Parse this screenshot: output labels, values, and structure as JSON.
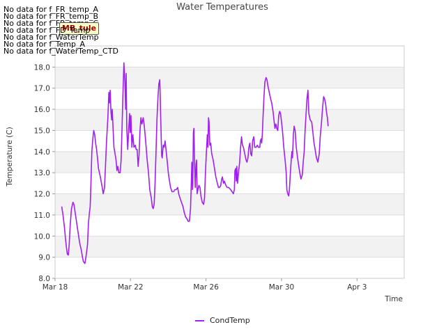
{
  "no_data_messages": [
    "No data for f_FR_temp_A",
    "No data for f_FR_temp_B",
    "No data for f_FR_temp_C",
    "No data for f_FD_Temp",
    "No data for f_WaterTemp",
    "No data for f_Temp_A",
    "No data for f_WaterTemp_CTD"
  ],
  "badge_label": "MB_tule",
  "colors": {
    "series": "#a020f0",
    "band": "#f2f2f2",
    "grid": "#dddddd"
  },
  "chart_data": {
    "type": "line",
    "title": "Water Temperatures",
    "xlabel": "Time",
    "ylabel": "Temperature (C)",
    "xlim": [
      0,
      18.5
    ],
    "ylim": [
      8.0,
      19.0
    ],
    "x_ticks": [
      {
        "day": 0,
        "label": "Mar 18"
      },
      {
        "day": 4,
        "label": "Mar 22"
      },
      {
        "day": 8,
        "label": "Mar 26"
      },
      {
        "day": 12,
        "label": "Mar 30"
      },
      {
        "day": 16,
        "label": "Apr 3"
      }
    ],
    "y_ticks": [
      8.0,
      9.0,
      10.0,
      11.0,
      12.0,
      13.0,
      14.0,
      15.0,
      16.0,
      17.0,
      18.0
    ],
    "legend": "bottom-center",
    "series": [
      {
        "name": "CondTemp",
        "x_unit": "days since Mar 18",
        "points": [
          [
            0.35,
            11.4
          ],
          [
            0.42,
            11.0
          ],
          [
            0.5,
            10.4
          ],
          [
            0.55,
            9.9
          ],
          [
            0.6,
            9.5
          ],
          [
            0.65,
            9.15
          ],
          [
            0.7,
            9.1
          ],
          [
            0.75,
            9.6
          ],
          [
            0.8,
            10.5
          ],
          [
            0.87,
            11.3
          ],
          [
            0.95,
            11.6
          ],
          [
            1.0,
            11.5
          ],
          [
            1.1,
            10.9
          ],
          [
            1.2,
            10.3
          ],
          [
            1.3,
            9.7
          ],
          [
            1.4,
            9.3
          ],
          [
            1.45,
            9.0
          ],
          [
            1.5,
            8.8
          ],
          [
            1.58,
            8.7
          ],
          [
            1.65,
            9.1
          ],
          [
            1.72,
            9.6
          ],
          [
            1.77,
            10.6
          ],
          [
            1.82,
            11.1
          ],
          [
            1.86,
            11.4
          ],
          [
            1.9,
            12.5
          ],
          [
            1.95,
            14.0
          ],
          [
            2.0,
            14.6
          ],
          [
            2.05,
            15.0
          ],
          [
            2.1,
            14.8
          ],
          [
            2.15,
            14.4
          ],
          [
            2.2,
            14.1
          ],
          [
            2.25,
            13.7
          ],
          [
            2.3,
            13.2
          ],
          [
            2.4,
            12.8
          ],
          [
            2.5,
            12.3
          ],
          [
            2.55,
            12.0
          ],
          [
            2.62,
            12.3
          ],
          [
            2.68,
            13.5
          ],
          [
            2.73,
            14.5
          ],
          [
            2.8,
            15.6
          ],
          [
            2.85,
            16.8
          ],
          [
            2.88,
            16.3
          ],
          [
            2.92,
            16.9
          ],
          [
            2.96,
            15.9
          ],
          [
            3.0,
            15.5
          ],
          [
            3.03,
            16.0
          ],
          [
            3.07,
            15.2
          ],
          [
            3.12,
            14.2
          ],
          [
            3.18,
            13.9
          ],
          [
            3.23,
            13.6
          ],
          [
            3.28,
            13.1
          ],
          [
            3.33,
            13.3
          ],
          [
            3.38,
            13.0
          ],
          [
            3.45,
            13.0
          ],
          [
            3.5,
            13.6
          ],
          [
            3.55,
            15.1
          ],
          [
            3.6,
            16.8
          ],
          [
            3.65,
            18.2
          ],
          [
            3.7,
            17.3
          ],
          [
            3.74,
            16.0
          ],
          [
            3.77,
            17.7
          ],
          [
            3.8,
            15.1
          ],
          [
            3.85,
            14.1
          ],
          [
            3.9,
            15.0
          ],
          [
            3.95,
            15.8
          ],
          [
            3.98,
            14.9
          ],
          [
            4.02,
            15.7
          ],
          [
            4.07,
            14.2
          ],
          [
            4.12,
            14.8
          ],
          [
            4.18,
            14.2
          ],
          [
            4.25,
            14.3
          ],
          [
            4.3,
            14.1
          ],
          [
            4.35,
            14.1
          ],
          [
            4.4,
            13.3
          ],
          [
            4.45,
            13.8
          ],
          [
            4.5,
            15.0
          ],
          [
            4.55,
            15.6
          ],
          [
            4.6,
            15.3
          ],
          [
            4.67,
            15.6
          ],
          [
            4.73,
            15.2
          ],
          [
            4.8,
            14.5
          ],
          [
            4.88,
            13.6
          ],
          [
            4.95,
            13.0
          ],
          [
            5.02,
            12.2
          ],
          [
            5.1,
            11.8
          ],
          [
            5.15,
            11.4
          ],
          [
            5.2,
            11.3
          ],
          [
            5.25,
            11.5
          ],
          [
            5.3,
            12.5
          ],
          [
            5.35,
            14.0
          ],
          [
            5.4,
            15.5
          ],
          [
            5.45,
            16.5
          ],
          [
            5.5,
            17.2
          ],
          [
            5.55,
            17.4
          ],
          [
            5.6,
            15.5
          ],
          [
            5.65,
            13.8
          ],
          [
            5.68,
            13.7
          ],
          [
            5.73,
            14.3
          ],
          [
            5.78,
            14.2
          ],
          [
            5.83,
            14.5
          ],
          [
            5.88,
            14.1
          ],
          [
            5.95,
            13.5
          ],
          [
            6.0,
            13.0
          ],
          [
            6.05,
            12.7
          ],
          [
            6.12,
            12.3
          ],
          [
            6.2,
            12.1
          ],
          [
            6.28,
            12.1
          ],
          [
            6.35,
            12.2
          ],
          [
            6.42,
            12.2
          ],
          [
            6.5,
            12.3
          ],
          [
            6.55,
            12.0
          ],
          [
            6.62,
            11.8
          ],
          [
            6.7,
            11.6
          ],
          [
            6.78,
            11.4
          ],
          [
            6.85,
            11.1
          ],
          [
            6.92,
            10.9
          ],
          [
            7.0,
            10.8
          ],
          [
            7.05,
            10.7
          ],
          [
            7.12,
            10.7
          ],
          [
            7.18,
            11.3
          ],
          [
            7.22,
            12.5
          ],
          [
            7.25,
            13.5
          ],
          [
            7.28,
            12.2
          ],
          [
            7.3,
            12.5
          ],
          [
            7.33,
            14.9
          ],
          [
            7.36,
            15.1
          ],
          [
            7.4,
            13.2
          ],
          [
            7.43,
            12.3
          ],
          [
            7.47,
            13.4
          ],
          [
            7.5,
            13.6
          ],
          [
            7.53,
            12.0
          ],
          [
            7.57,
            12.2
          ],
          [
            7.62,
            12.4
          ],
          [
            7.68,
            12.3
          ],
          [
            7.73,
            11.9
          ],
          [
            7.8,
            11.6
          ],
          [
            7.87,
            11.5
          ],
          [
            7.92,
            11.8
          ],
          [
            7.97,
            13.0
          ],
          [
            8.02,
            14.0
          ],
          [
            8.07,
            14.8
          ],
          [
            8.1,
            14.2
          ],
          [
            8.13,
            15.6
          ],
          [
            8.16,
            15.4
          ],
          [
            8.2,
            14.3
          ],
          [
            8.25,
            14.4
          ],
          [
            8.3,
            13.9
          ],
          [
            8.38,
            13.6
          ],
          [
            8.45,
            13.2
          ],
          [
            8.52,
            12.8
          ],
          [
            8.6,
            12.5
          ],
          [
            8.66,
            12.3
          ],
          [
            8.72,
            12.3
          ],
          [
            8.78,
            12.4
          ],
          [
            8.83,
            12.7
          ],
          [
            8.87,
            12.8
          ],
          [
            8.92,
            12.5
          ],
          [
            8.97,
            12.6
          ],
          [
            9.05,
            12.4
          ],
          [
            9.12,
            12.3
          ],
          [
            9.2,
            12.3
          ],
          [
            9.3,
            12.2
          ],
          [
            9.38,
            12.1
          ],
          [
            9.45,
            12.0
          ],
          [
            9.5,
            12.2
          ],
          [
            9.53,
            13.1
          ],
          [
            9.57,
            13.2
          ],
          [
            9.6,
            12.6
          ],
          [
            9.63,
            13.3
          ],
          [
            9.67,
            12.5
          ],
          [
            9.72,
            13.0
          ],
          [
            9.78,
            13.5
          ],
          [
            9.83,
            14.2
          ],
          [
            9.88,
            14.7
          ],
          [
            9.93,
            14.3
          ],
          [
            9.98,
            14.2
          ],
          [
            10.05,
            13.9
          ],
          [
            10.12,
            13.6
          ],
          [
            10.17,
            13.5
          ],
          [
            10.22,
            13.7
          ],
          [
            10.27,
            14.2
          ],
          [
            10.32,
            14.4
          ],
          [
            10.37,
            13.9
          ],
          [
            10.42,
            13.8
          ],
          [
            10.47,
            14.5
          ],
          [
            10.53,
            14.7
          ],
          [
            10.58,
            14.2
          ],
          [
            10.65,
            14.2
          ],
          [
            10.72,
            14.3
          ],
          [
            10.78,
            14.2
          ],
          [
            10.85,
            14.2
          ],
          [
            10.88,
            14.5
          ],
          [
            10.92,
            14.6
          ],
          [
            10.95,
            14.4
          ],
          [
            10.98,
            14.8
          ],
          [
            11.02,
            15.6
          ],
          [
            11.07,
            16.6
          ],
          [
            11.12,
            17.3
          ],
          [
            11.18,
            17.5
          ],
          [
            11.23,
            17.4
          ],
          [
            11.28,
            17.1
          ],
          [
            11.35,
            16.8
          ],
          [
            11.42,
            16.5
          ],
          [
            11.48,
            16.3
          ],
          [
            11.55,
            15.9
          ],
          [
            11.6,
            15.5
          ],
          [
            11.65,
            15.1
          ],
          [
            11.7,
            15.3
          ],
          [
            11.75,
            15.1
          ],
          [
            11.8,
            15.0
          ],
          [
            11.85,
            15.7
          ],
          [
            11.9,
            15.9
          ],
          [
            11.95,
            15.8
          ],
          [
            12.0,
            15.4
          ],
          [
            12.05,
            15.0
          ],
          [
            12.12,
            14.2
          ],
          [
            12.2,
            13.5
          ],
          [
            12.25,
            13.0
          ],
          [
            12.28,
            12.2
          ],
          [
            12.33,
            12.0
          ],
          [
            12.38,
            11.9
          ],
          [
            12.42,
            12.2
          ],
          [
            12.47,
            13.0
          ],
          [
            12.52,
            13.7
          ],
          [
            12.55,
            14.0
          ],
          [
            12.58,
            13.7
          ],
          [
            12.63,
            14.8
          ],
          [
            12.67,
            15.2
          ],
          [
            12.72,
            15.0
          ],
          [
            12.78,
            14.2
          ],
          [
            12.85,
            13.7
          ],
          [
            12.9,
            13.4
          ],
          [
            12.97,
            13.0
          ],
          [
            13.03,
            12.7
          ],
          [
            13.1,
            12.9
          ],
          [
            13.15,
            13.5
          ],
          [
            13.2,
            14.0
          ],
          [
            13.25,
            15.0
          ],
          [
            13.3,
            15.8
          ],
          [
            13.35,
            16.5
          ],
          [
            13.4,
            16.9
          ],
          [
            13.45,
            15.8
          ],
          [
            13.52,
            15.5
          ],
          [
            13.6,
            15.4
          ],
          [
            13.65,
            15.0
          ],
          [
            13.72,
            14.4
          ],
          [
            13.78,
            14.1
          ],
          [
            13.85,
            13.7
          ],
          [
            13.93,
            13.5
          ],
          [
            14.0,
            13.9
          ],
          [
            14.05,
            14.7
          ],
          [
            14.12,
            15.4
          ],
          [
            14.18,
            16.1
          ],
          [
            14.23,
            16.6
          ],
          [
            14.28,
            16.5
          ],
          [
            14.33,
            16.3
          ],
          [
            14.38,
            15.9
          ],
          [
            14.43,
            15.6
          ],
          [
            14.47,
            15.2
          ]
        ]
      }
    ]
  }
}
